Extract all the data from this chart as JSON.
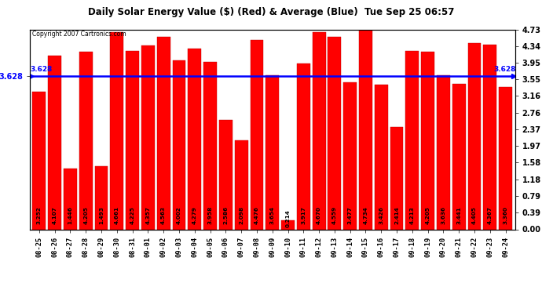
{
  "title": "Daily Solar Energy Value ($) (Red) & Average (Blue)  Tue Sep 25 06:57",
  "copyright": "Copyright 2007 Cartronics.com",
  "average": 3.628,
  "bar_color": "#FF0000",
  "avg_line_color": "#0000FF",
  "background_color": "#FFFFFF",
  "yticks": [
    0.0,
    0.39,
    0.79,
    1.18,
    1.58,
    1.97,
    2.37,
    2.76,
    3.16,
    3.55,
    3.95,
    4.34,
    4.73
  ],
  "ylim": [
    0.0,
    4.73
  ],
  "categories": [
    "08-25",
    "08-26",
    "08-27",
    "08-28",
    "08-29",
    "08-30",
    "08-31",
    "09-01",
    "09-02",
    "09-03",
    "09-04",
    "09-05",
    "09-06",
    "09-07",
    "09-08",
    "09-09",
    "09-10",
    "09-11",
    "09-12",
    "09-13",
    "09-14",
    "09-15",
    "09-16",
    "09-17",
    "09-18",
    "09-19",
    "09-20",
    "09-21",
    "09-22",
    "09-23",
    "09-24"
  ],
  "values": [
    3.252,
    4.107,
    1.446,
    4.205,
    1.493,
    4.661,
    4.225,
    4.357,
    4.563,
    4.002,
    4.279,
    3.958,
    2.586,
    2.098,
    4.476,
    3.654,
    0.214,
    3.917,
    4.67,
    4.559,
    3.477,
    4.734,
    3.426,
    2.414,
    4.213,
    4.205,
    3.636,
    3.441,
    4.405,
    4.367,
    3.36
  ]
}
